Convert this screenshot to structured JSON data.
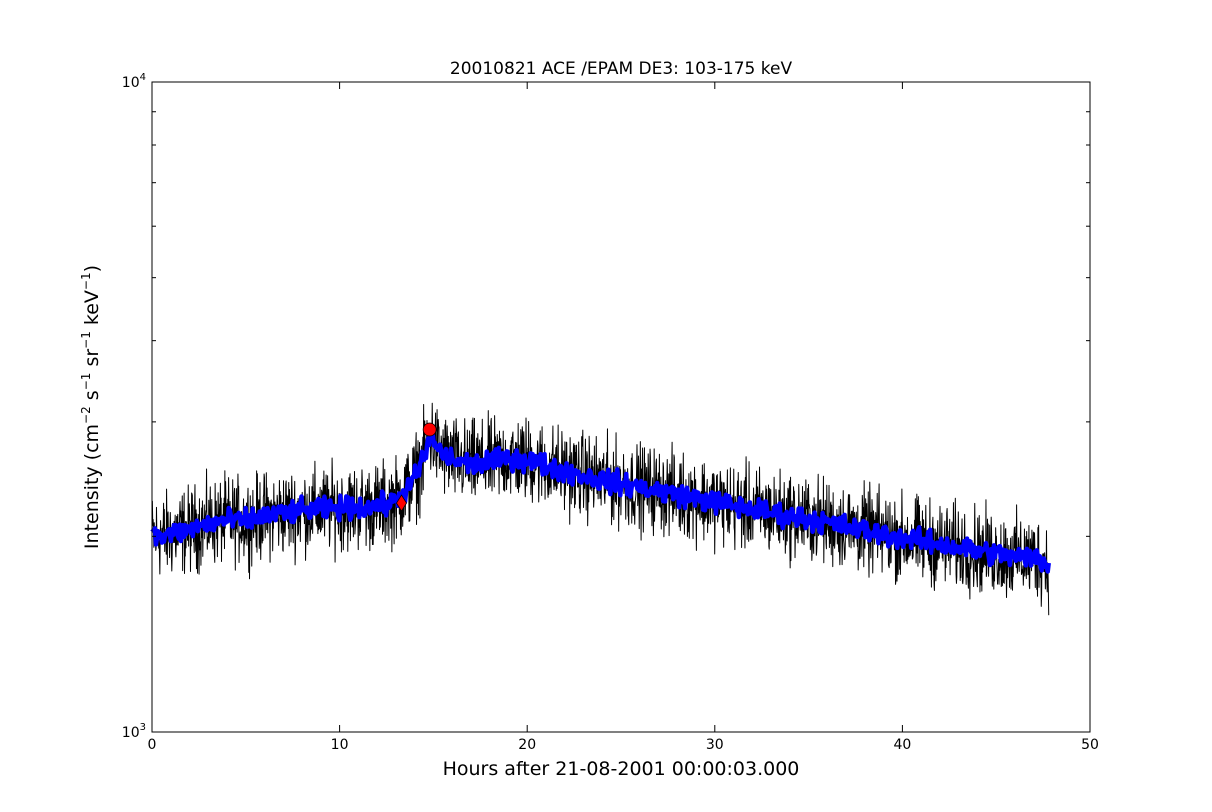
{
  "chart_data": {
    "type": "line",
    "title": "20010821 ACE /EPAM DE3: 103-175 keV",
    "xlabel": "Hours after 21-08-2001 00:00:03.000",
    "ylabel_prefix": "Intensity (",
    "ylabel_parts": [
      {
        "base": "cm",
        "exp": "−2"
      },
      {
        "base": "s",
        "exp": "−1"
      },
      {
        "base": "sr",
        "exp": "−1"
      },
      {
        "base": "keV",
        "exp": "−1"
      }
    ],
    "ylabel_suffix": ")",
    "xlim": [
      0,
      50
    ],
    "ylim": [
      1000,
      10000
    ],
    "yscale": "log",
    "grid": false,
    "x_ticks": [
      0,
      10,
      20,
      30,
      40,
      50
    ],
    "x_tick_labels": [
      "0",
      "10",
      "20",
      "30",
      "40",
      "50"
    ],
    "y_ticks": [
      {
        "value": 1000,
        "base": "10",
        "exp": "3"
      },
      {
        "value": 10000,
        "base": "10",
        "exp": "4"
      }
    ],
    "series": [
      {
        "role": "raw",
        "color": "#000000",
        "x": [
          0,
          1,
          2,
          3,
          4,
          5,
          6,
          7,
          8,
          9,
          10,
          11,
          12,
          12.7,
          13.3,
          14,
          14.5,
          14.9,
          15.3,
          16,
          17,
          18,
          19,
          20,
          22,
          24,
          26,
          28,
          30,
          32,
          34,
          36,
          38,
          40,
          42,
          44,
          46,
          47.2,
          47.8
        ],
        "y": [
          2000,
          2010,
          2050,
          2090,
          2120,
          2110,
          2150,
          2170,
          2190,
          2200,
          2210,
          2215,
          2225,
          2250,
          2300,
          2450,
          2650,
          2850,
          2700,
          2620,
          2580,
          2600,
          2640,
          2620,
          2520,
          2440,
          2380,
          2320,
          2260,
          2200,
          2150,
          2100,
          2040,
          1990,
          1945,
          1900,
          1860,
          1850,
          1810
        ],
        "noise_amplitude": 0.045
      },
      {
        "role": "smoothed",
        "color": "#0000ff",
        "x": [
          0,
          1,
          2,
          3,
          4,
          5,
          6,
          7,
          8,
          9,
          10,
          11,
          12,
          12.7,
          13.3,
          14,
          14.5,
          14.9,
          15.3,
          16,
          17,
          18,
          19,
          20,
          22,
          24,
          26,
          28,
          30,
          32,
          34,
          36,
          38,
          40,
          42,
          44,
          46,
          47.2,
          47.8
        ],
        "y": [
          2000,
          2010,
          2050,
          2090,
          2120,
          2110,
          2150,
          2170,
          2190,
          2200,
          2210,
          2215,
          2225,
          2250,
          2300,
          2450,
          2650,
          2850,
          2700,
          2620,
          2580,
          2600,
          2640,
          2620,
          2520,
          2440,
          2380,
          2320,
          2260,
          2200,
          2150,
          2100,
          2040,
          1990,
          1945,
          1900,
          1860,
          1850,
          1810
        ],
        "noise_amplitude": 0.012
      }
    ],
    "markers": [
      {
        "shape": "diamond",
        "x": 13.3,
        "y": 2250,
        "color": "#ff0000"
      },
      {
        "shape": "circle",
        "x": 14.8,
        "y": 2920,
        "color": "#ff0000"
      }
    ]
  }
}
